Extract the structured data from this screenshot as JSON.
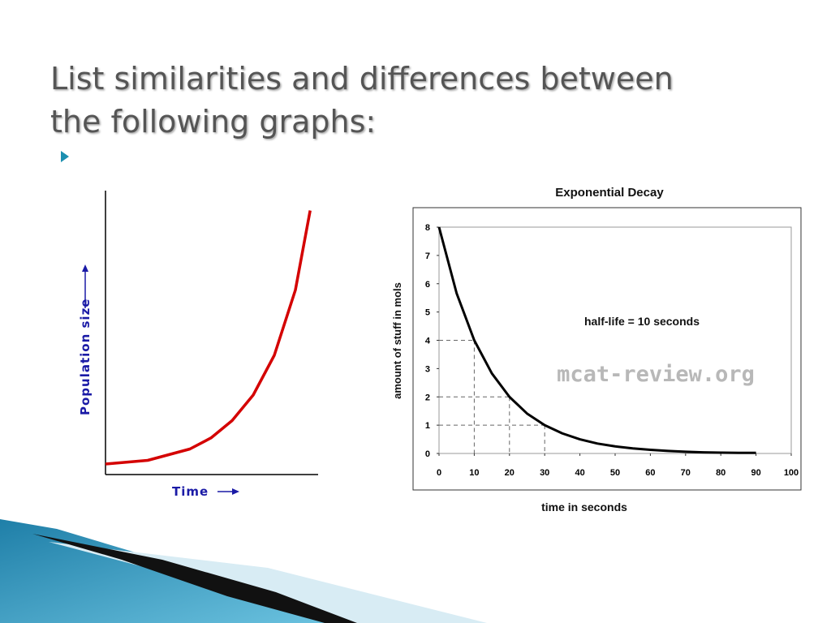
{
  "title": "List similarities and differences between the following graphs:",
  "chart_data": [
    {
      "type": "line",
      "y_label": "Population size",
      "x_label": "Time",
      "x": [
        0,
        2,
        4,
        5,
        6,
        7,
        8,
        9,
        9.7
      ],
      "values": [
        3.7,
        5,
        9,
        12.9,
        19,
        28,
        42,
        65,
        93
      ],
      "xlim": [
        0,
        10
      ],
      "ylim": [
        0,
        100
      ],
      "color": "#d40000"
    },
    {
      "type": "line",
      "title": "Exponential Decay",
      "y_label": "amount of stuff in mols",
      "x_label": "time in seconds",
      "annotation": "half-life = 10 seconds",
      "watermark": "mcat-review.org",
      "x": [
        0,
        5,
        10,
        15,
        20,
        25,
        30,
        35,
        40,
        45,
        50,
        55,
        60,
        65,
        70,
        75,
        80,
        85,
        90
      ],
      "values": [
        8,
        5.66,
        4,
        2.83,
        2,
        1.41,
        1,
        0.71,
        0.5,
        0.35,
        0.25,
        0.18,
        0.13,
        0.09,
        0.06,
        0.04,
        0.03,
        0.02,
        0.02
      ],
      "xlim": [
        0,
        100
      ],
      "ylim": [
        0,
        8
      ],
      "xticks": [
        0,
        10,
        20,
        30,
        40,
        50,
        60,
        70,
        80,
        90,
        100
      ],
      "yticks": [
        0,
        1,
        2,
        3,
        4,
        5,
        6,
        7,
        8
      ],
      "guides": [
        {
          "x": 10,
          "y": 4
        },
        {
          "x": 20,
          "y": 2
        },
        {
          "x": 30,
          "y": 1
        }
      ],
      "color": "#000000"
    }
  ]
}
